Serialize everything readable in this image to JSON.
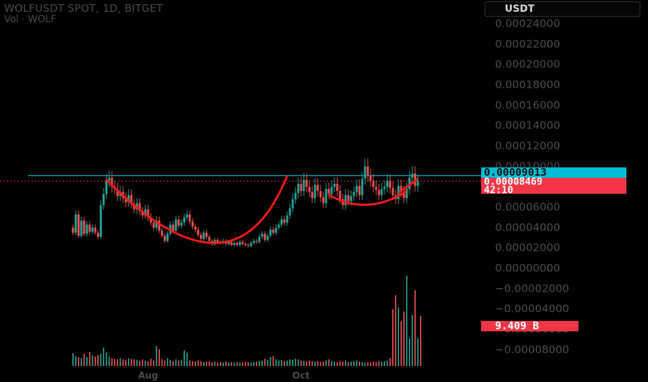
{
  "header": {
    "title": "WOLFUSDT SPOT, 1D, BITGET",
    "subtitle": "Vol · WOLF",
    "currency_button": "USDT"
  },
  "badges": {
    "price_level": "0.00009013",
    "last_price": "0.00008469",
    "countdown": "42:10",
    "volume": "9.409 B"
  },
  "colors": {
    "up": "#26a69a",
    "down": "#ef5350",
    "pattern": "#ff1a1a",
    "level_line": "#0097a7",
    "last_line": "#f23645"
  },
  "chart_data": {
    "type": "candlestick",
    "title": "WOLFUSDT SPOT, 1D, BITGET",
    "y_ticks": [
      "0.00024000",
      "0.00022000",
      "0.00020000",
      "0.00018000",
      "0.00016000",
      "0.00014000",
      "0.00012000",
      "0.00010000",
      "0.00008000",
      "0.00006000",
      "0.00004000",
      "0.00002000",
      "0.00000000",
      "−0.00002000",
      "−0.00004000",
      "−0.00006000",
      "−0.00008000"
    ],
    "y_tick_values": [
      0.00024,
      0.00022,
      0.0002,
      0.00018,
      0.00016,
      0.00014,
      0.00012,
      0.0001,
      8e-05,
      6e-05,
      4e-05,
      2e-05,
      0,
      -2e-05,
      -4e-05,
      -6e-05,
      -8e-05
    ],
    "ylim": [
      -8e-05,
      0.00024
    ],
    "x_ticks": [
      "Aug",
      "Oct"
    ],
    "x_tick_index": [
      27,
      82
    ],
    "horizontal_level": 9.013e-05,
    "last_price": 8.469e-05,
    "volume_label": "9.409 B",
    "closes": [
      3.4e-05,
      5.2e-05,
      3.1e-05,
      4.6e-05,
      3.3e-05,
      4.2e-05,
      3.5e-05,
      3.9e-05,
      3.4e-05,
      3e-05,
      6.1e-05,
      7.2e-05,
      8.5e-05,
      8.8e-05,
      7.9e-05,
      7.7e-05,
      7e-05,
      7.4e-05,
      6.8e-05,
      6.4e-05,
      7.1e-05,
      6.2e-05,
      5.7e-05,
      6.3e-05,
      5.5e-05,
      5.1e-05,
      5.7e-05,
      4.9e-05,
      4.4e-05,
      3.9e-05,
      4.6e-05,
      3.6e-05,
      3.1e-05,
      2.6e-05,
      3.3e-05,
      4.2e-05,
      3.6e-05,
      4.7e-05,
      4.1e-05,
      4.4e-05,
      4.9e-05,
      5.2e-05,
      4.5e-05,
      4e-05,
      3.7e-05,
      3.2e-05,
      2.8e-05,
      3.4e-05,
      3e-05,
      2.6e-05,
      2.3e-05,
      2.7e-05,
      2.5e-05,
      2.4e-05,
      2.6e-05,
      2.3e-05,
      2.5e-05,
      2.2e-05,
      2.4e-05,
      2.2e-05,
      2.5e-05,
      2.3e-05,
      2.2e-05,
      2.1e-05,
      2.4e-05,
      2.6e-05,
      2.5e-05,
      3e-05,
      3.3e-05,
      2.7e-05,
      3.1e-05,
      3.7e-05,
      3.4e-05,
      3.9e-05,
      4.2e-05,
      4.7e-05,
      4.4e-05,
      5.1e-05,
      5.8e-05,
      6.7e-05,
      7.3e-05,
      8.2e-05,
      7.5e-05,
      8.6e-05,
      7.9e-05,
      7.4e-05,
      6.8e-05,
      8.1e-05,
      7.5e-05,
      6.9e-05,
      6.3e-05,
      7.7e-05,
      7.2e-05,
      7.9e-05,
      8.2e-05,
      7.5e-05,
      6.7e-05,
      6.1e-05,
      7.1e-05,
      6.5e-05,
      7e-05,
      7.4e-05,
      8e-05,
      7.1e-05,
      8.7e-05,
      9.9e-05,
      9e-05,
      8.5e-05,
      7.9e-05,
      7.6e-05,
      7.1e-05,
      7.7e-05,
      7.9e-05,
      8.5e-05,
      7.8e-05,
      7.1e-05,
      6.7e-05,
      8e-05,
      7.4e-05,
      6.8e-05,
      7.7e-05,
      8.8e-05,
      9.2e-05,
      8e-05,
      8.5e-05
    ],
    "volumes": [
      0.23,
      0.18,
      0.16,
      0.14,
      0.22,
      0.16,
      0.25,
      0.19,
      0.17,
      0.2,
      0.22,
      0.33,
      0.25,
      0.17,
      0.14,
      0.13,
      0.12,
      0.14,
      0.12,
      0.11,
      0.14,
      0.13,
      0.12,
      0.11,
      0.1,
      0.12,
      0.1,
      0.09,
      0.13,
      0.1,
      0.36,
      0.3,
      0.12,
      0.1,
      0.14,
      0.11,
      0.09,
      0.12,
      0.1,
      0.11,
      0.28,
      0.24,
      0.1,
      0.09,
      0.08,
      0.1,
      0.09,
      0.07,
      0.08,
      0.09,
      0.07,
      0.08,
      0.06,
      0.07,
      0.06,
      0.08,
      0.06,
      0.07,
      0.06,
      0.07,
      0.06,
      0.07,
      0.08,
      0.07,
      0.06,
      0.07,
      0.08,
      0.09,
      0.1,
      0.13,
      0.11,
      0.16,
      0.18,
      0.12,
      0.1,
      0.11,
      0.09,
      0.1,
      0.12,
      0.11,
      0.13,
      0.12,
      0.1,
      0.09,
      0.08,
      0.1,
      0.09,
      0.08,
      0.09,
      0.07,
      0.08,
      0.1,
      0.12,
      0.09,
      0.08,
      0.07,
      0.09,
      0.08,
      0.1,
      0.07,
      0.08,
      0.09,
      0.1,
      0.08,
      0.07,
      0.06,
      0.07,
      0.06,
      0.08,
      0.07,
      0.09,
      0.08,
      0.09,
      0.1,
      0.14,
      1.02,
      1.27,
      1.05,
      0.8,
      0.98,
      1.62,
      0.5,
      0.92,
      1.36,
      0.5,
      0.9
    ]
  }
}
